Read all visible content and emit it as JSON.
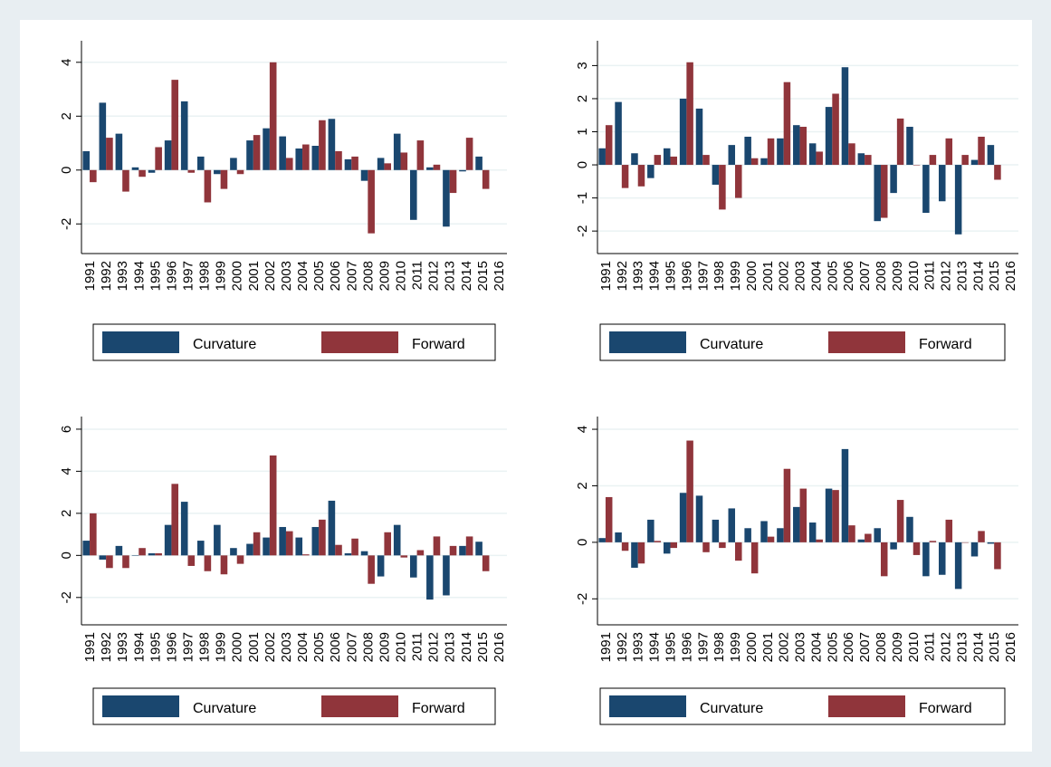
{
  "chart_data": [
    {
      "type": "bar",
      "categories": [
        "1991",
        "1992",
        "1993",
        "1994",
        "1995",
        "1996",
        "1997",
        "1998",
        "1999",
        "2000",
        "2001",
        "2002",
        "2003",
        "2004",
        "2005",
        "2006",
        "2007",
        "2008",
        "2009",
        "2010",
        "2011",
        "2012",
        "2013",
        "2014",
        "2015",
        "2016"
      ],
      "series": [
        {
          "name": "Curvature",
          "color": "#1a476f",
          "values": [
            0.7,
            2.5,
            1.35,
            0.1,
            -0.1,
            1.1,
            2.55,
            0.5,
            -0.15,
            0.45,
            1.1,
            1.55,
            1.25,
            0.8,
            0.9,
            1.9,
            0.4,
            -0.4,
            0.45,
            1.35,
            -1.85,
            0.1,
            -2.1,
            -0.05,
            0.5,
            null
          ]
        },
        {
          "name": "Forward",
          "color": "#90353b",
          "values": [
            -0.45,
            1.2,
            -0.8,
            -0.25,
            0.85,
            3.35,
            -0.1,
            -1.2,
            -0.7,
            -0.15,
            1.3,
            4.0,
            0.45,
            0.95,
            1.85,
            0.7,
            0.5,
            -2.35,
            0.25,
            0.65,
            1.1,
            0.2,
            -0.85,
            1.2,
            -0.7,
            null
          ]
        }
      ],
      "ylim": [
        -3.1,
        4.8
      ],
      "yticks": [
        -2,
        0,
        2,
        4
      ],
      "grid": true
    },
    {
      "type": "bar",
      "categories": [
        "1991",
        "1992",
        "1993",
        "1994",
        "1995",
        "1996",
        "1997",
        "1998",
        "1999",
        "2000",
        "2001",
        "2002",
        "2003",
        "2004",
        "2005",
        "2006",
        "2007",
        "2008",
        "2009",
        "2010",
        "2011",
        "2012",
        "2013",
        "2014",
        "2015",
        "2016"
      ],
      "series": [
        {
          "name": "Curvature",
          "color": "#1a476f",
          "values": [
            0.5,
            1.9,
            0.35,
            -0.4,
            0.5,
            2.0,
            1.7,
            -0.6,
            0.6,
            0.85,
            0.2,
            0.8,
            1.2,
            0.65,
            1.75,
            2.95,
            0.35,
            -1.7,
            -0.85,
            1.15,
            -1.45,
            -1.1,
            -2.1,
            0.15,
            0.6,
            null
          ]
        },
        {
          "name": "Forward",
          "color": "#90353b",
          "values": [
            1.2,
            -0.7,
            -0.65,
            0.3,
            0.25,
            3.1,
            0.3,
            -1.35,
            -1.0,
            0.2,
            0.8,
            2.5,
            1.15,
            0.4,
            2.15,
            0.65,
            0.3,
            -1.6,
            1.4,
            0.0,
            0.3,
            0.8,
            0.3,
            0.85,
            -0.45,
            null
          ]
        }
      ],
      "ylim": [
        -2.68,
        3.75
      ],
      "yticks": [
        -2,
        -1,
        0,
        1,
        2,
        3
      ],
      "grid": true
    },
    {
      "type": "bar",
      "categories": [
        "1991",
        "1992",
        "1993",
        "1994",
        "1995",
        "1996",
        "1997",
        "1998",
        "1999",
        "2000",
        "2001",
        "2002",
        "2003",
        "2004",
        "2005",
        "2006",
        "2007",
        "2008",
        "2009",
        "2010",
        "2011",
        "2012",
        "2013",
        "2014",
        "2015",
        "2016"
      ],
      "series": [
        {
          "name": "Curvature",
          "color": "#1a476f",
          "values": [
            0.7,
            -0.2,
            0.45,
            0.0,
            0.1,
            1.45,
            2.55,
            0.7,
            1.45,
            0.35,
            0.55,
            0.85,
            1.35,
            0.85,
            1.35,
            2.6,
            0.1,
            0.2,
            -1.0,
            1.45,
            -1.05,
            -2.1,
            -1.9,
            0.45,
            0.65,
            null
          ]
        },
        {
          "name": "Forward",
          "color": "#90353b",
          "values": [
            2.0,
            -0.6,
            -0.6,
            0.35,
            0.1,
            3.4,
            -0.5,
            -0.75,
            -0.9,
            -0.4,
            1.1,
            4.75,
            1.15,
            0.05,
            1.7,
            0.5,
            0.8,
            -1.35,
            1.1,
            -0.1,
            0.25,
            0.9,
            0.45,
            0.9,
            -0.75,
            null
          ]
        }
      ],
      "ylim": [
        -3.3,
        6.6
      ],
      "yticks": [
        -2,
        0,
        2,
        4,
        6
      ],
      "grid": true
    },
    {
      "type": "bar",
      "categories": [
        "1991",
        "1992",
        "1993",
        "1994",
        "1995",
        "1996",
        "1997",
        "1998",
        "1999",
        "2000",
        "2001",
        "2002",
        "2003",
        "2004",
        "2005",
        "2006",
        "2007",
        "2008",
        "2009",
        "2010",
        "2011",
        "2012",
        "2013",
        "2014",
        "2015",
        "2016"
      ],
      "series": [
        {
          "name": "Curvature",
          "color": "#1a476f",
          "values": [
            0.15,
            0.35,
            -0.9,
            0.8,
            -0.4,
            1.75,
            1.65,
            0.8,
            1.2,
            0.5,
            0.75,
            0.5,
            1.25,
            0.7,
            1.9,
            3.3,
            0.1,
            0.5,
            -0.25,
            0.9,
            -1.2,
            -1.15,
            -1.65,
            -0.5,
            -0.05,
            null
          ]
        },
        {
          "name": "Forward",
          "color": "#90353b",
          "values": [
            1.6,
            -0.3,
            -0.75,
            0.05,
            -0.2,
            3.6,
            -0.35,
            -0.2,
            -0.65,
            -1.1,
            0.2,
            2.6,
            1.9,
            0.1,
            1.85,
            0.6,
            0.3,
            -1.2,
            1.5,
            -0.45,
            0.05,
            0.8,
            0.0,
            0.4,
            -0.95,
            null
          ]
        }
      ],
      "ylim": [
        -2.92,
        4.45
      ],
      "yticks": [
        -2,
        0,
        2,
        4
      ],
      "grid": true
    }
  ]
}
